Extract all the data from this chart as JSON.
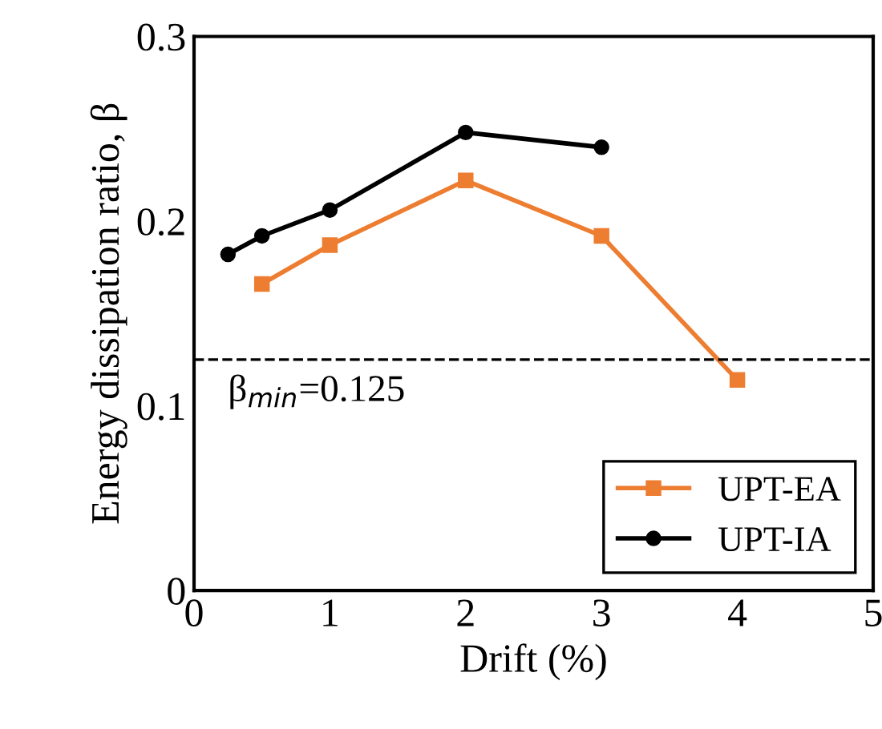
{
  "chart_data": {
    "type": "line",
    "xlabel": "Drift (%)",
    "ylabel": "Energy dissipation ratio, β",
    "xlim": [
      0,
      5
    ],
    "xticks": [
      0,
      1,
      2,
      3,
      4,
      5
    ],
    "ylim": [
      0,
      0.3
    ],
    "yticks": [
      0,
      0.1,
      0.2,
      0.3
    ],
    "series": [
      {
        "name": "UPT-EA",
        "color": "#ed7d31",
        "marker": "square",
        "x": [
          0.5,
          1,
          2,
          3,
          4
        ],
        "values": [
          0.166,
          0.187,
          0.222,
          0.192,
          0.114
        ]
      },
      {
        "name": "UPT-IA",
        "color": "#000000",
        "marker": "circle",
        "x": [
          0.25,
          0.5,
          1,
          2,
          3
        ],
        "values": [
          0.182,
          0.192,
          0.206,
          0.248,
          0.24
        ]
      }
    ],
    "ref_lines": [
      {
        "axis": "y",
        "value": 0.125,
        "label": "β$_{min}$=0.125",
        "color": "#000000",
        "line_style": "dashed"
      }
    ],
    "grid": false,
    "legend": "bottom right",
    "line_style": "solid"
  }
}
